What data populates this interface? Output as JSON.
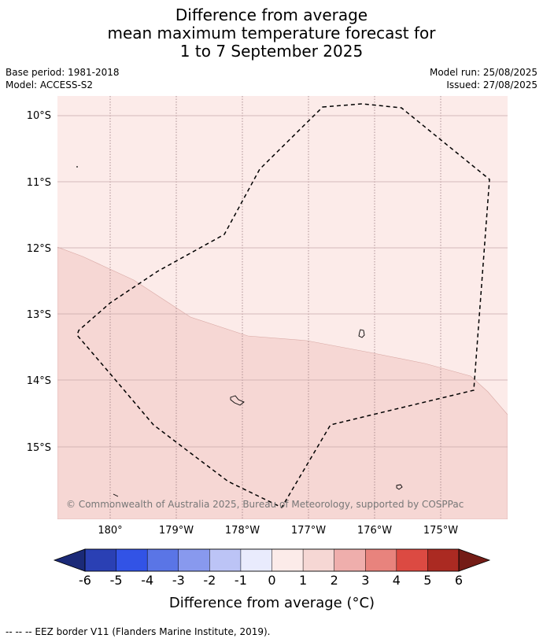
{
  "title": {
    "line1": "Difference from average",
    "line2": "mean maximum temperature forecast for",
    "line3": "1 to 7 September 2025"
  },
  "meta": {
    "base_period": "Base period: 1981-2018",
    "model": "Model: ACCESS-S2",
    "model_run": "Model run: 25/08/2025",
    "issued": "Issued: 27/08/2025"
  },
  "map": {
    "lat_ticks": [
      "10°S",
      "11°S",
      "12°S",
      "13°S",
      "14°S",
      "15°S"
    ],
    "lon_ticks": [
      "180°",
      "179°W",
      "178°W",
      "177°W",
      "176°W",
      "175°W"
    ],
    "copyright": "© Commonwealth of Australia 2025, Bureau of Meteorology, supported by COSPPac",
    "zone_colors": {
      "light": "#fcebe9",
      "medium": "#f6d7d4"
    }
  },
  "colorbar": {
    "label": "Difference from average (°C)",
    "ticks": [
      "-6",
      "-5",
      "-4",
      "-3",
      "-2",
      "-1",
      "0",
      "1",
      "2",
      "3",
      "4",
      "5",
      "6"
    ],
    "colors": [
      "#1b2a78",
      "#2a40b4",
      "#3253e6",
      "#5a75e6",
      "#8899ee",
      "#bcc4f6",
      "#e9ebfd",
      "#fcebe9",
      "#f6d7d4",
      "#efaeac",
      "#e8837d",
      "#dc4a42",
      "#ab2a22",
      "#741c16"
    ]
  },
  "footer": {
    "eez_note": "--  --  -- EEZ border V11 (Flanders Marine Institute, 2019)."
  }
}
